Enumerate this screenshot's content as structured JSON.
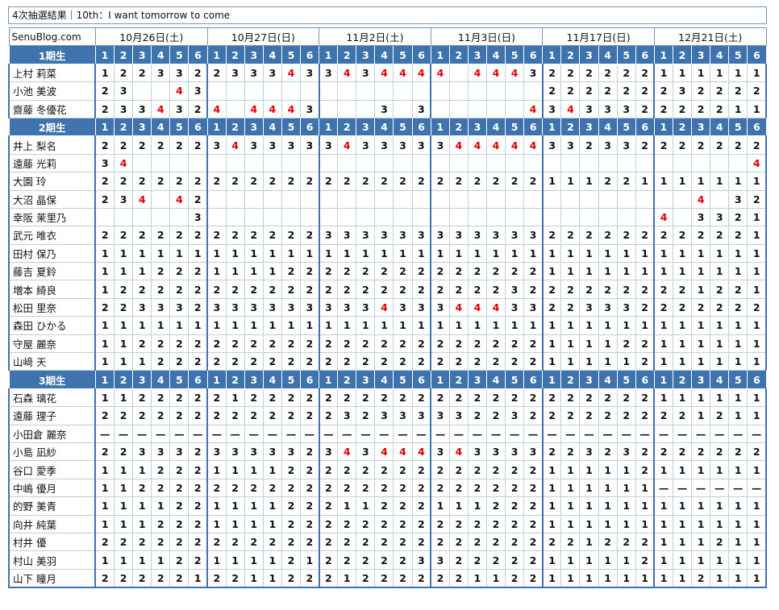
{
  "title": "4次抽選結果｜10th：I want tomorrow to come",
  "blog": "SenuBlog.com",
  "dates": [
    "10月26日(土)",
    "10月27日(日)",
    "11月2日(土)",
    "11月3日(日)",
    "11月17日(日)",
    "12月21日(土)"
  ],
  "slots": [
    "1",
    "2",
    "3",
    "4",
    "5",
    "6"
  ],
  "generations": [
    {
      "label": "1期生",
      "members": [
        {
          "name": "上村 莉菜",
          "values": [
            "1",
            "2",
            "2",
            "3",
            "3",
            "2",
            "2",
            "3",
            "3",
            "3",
            "4",
            "3",
            "3",
            "4",
            "3",
            "4",
            "4",
            "4",
            "4",
            "",
            "4",
            "4",
            "4",
            "3",
            "2",
            "2",
            "2",
            "2",
            "2",
            "2",
            "1",
            "1",
            "1",
            "1",
            "1",
            "1"
          ]
        },
        {
          "name": "小池 美波",
          "values": [
            "2",
            "3",
            "",
            "",
            "4",
            "3",
            "",
            "",
            "",
            "",
            "",
            "",
            "",
            "",
            "",
            "",
            "",
            "",
            "",
            "",
            "",
            "",
            "",
            "",
            "2",
            "2",
            "2",
            "2",
            "2",
            "2",
            "2",
            "3",
            "2",
            "2",
            "2",
            "2"
          ]
        },
        {
          "name": "齋藤 冬優花",
          "values": [
            "2",
            "3",
            "3",
            "4",
            "3",
            "2",
            "4",
            "",
            "4",
            "4",
            "4",
            "3",
            "",
            "",
            "",
            "3",
            "",
            "3",
            "",
            "",
            "",
            "",
            "",
            "4",
            "3",
            "4",
            "3",
            "3",
            "3",
            "2",
            "2",
            "2",
            "2",
            "2",
            "1",
            "1"
          ]
        }
      ]
    },
    {
      "label": "2期生",
      "members": [
        {
          "name": "井上 梨名",
          "values": [
            "2",
            "2",
            "2",
            "2",
            "2",
            "2",
            "3",
            "4",
            "3",
            "3",
            "3",
            "3",
            "3",
            "4",
            "3",
            "3",
            "3",
            "3",
            "3",
            "4",
            "4",
            "4",
            "4",
            "4",
            "3",
            "3",
            "2",
            "3",
            "3",
            "2",
            "2",
            "2",
            "2",
            "2",
            "2",
            "2"
          ]
        },
        {
          "name": "遠藤 光莉",
          "values": [
            "3",
            "4",
            "",
            "",
            "",
            "",
            "",
            "",
            "",
            "",
            "",
            "",
            "",
            "",
            "",
            "",
            "",
            "",
            "",
            "",
            "",
            "",
            "",
            "",
            "",
            "",
            "",
            "",
            "",
            "",
            "",
            "",
            "",
            "",
            "",
            "4"
          ]
        },
        {
          "name": "大園 玲",
          "values": [
            "2",
            "2",
            "2",
            "2",
            "2",
            "2",
            "2",
            "2",
            "2",
            "2",
            "2",
            "2",
            "2",
            "2",
            "2",
            "2",
            "2",
            "2",
            "2",
            "2",
            "2",
            "2",
            "2",
            "2",
            "1",
            "1",
            "1",
            "2",
            "2",
            "1",
            "1",
            "1",
            "1",
            "1",
            "1",
            "1"
          ]
        },
        {
          "name": "大沼 晶保",
          "values": [
            "2",
            "3",
            "4",
            "",
            "4",
            "2",
            "",
            "",
            "",
            "",
            "",
            "",
            "",
            "",
            "",
            "",
            "",
            "",
            "",
            "",
            "",
            "",
            "",
            "",
            "",
            "",
            "",
            "",
            "",
            "",
            "",
            "",
            "4",
            "",
            "3",
            "2"
          ]
        },
        {
          "name": "幸阪 茉里乃",
          "values": [
            "",
            "",
            "",
            "",
            "",
            "3",
            "",
            "",
            "",
            "",
            "",
            "",
            "",
            "",
            "",
            "",
            "",
            "",
            "",
            "",
            "",
            "",
            "",
            "",
            "",
            "",
            "",
            "",
            "",
            "",
            "4",
            "",
            "3",
            "3",
            "2",
            "1"
          ]
        },
        {
          "name": "武元 唯衣",
          "values": [
            "2",
            "2",
            "2",
            "2",
            "2",
            "2",
            "2",
            "2",
            "2",
            "2",
            "2",
            "2",
            "3",
            "3",
            "3",
            "3",
            "3",
            "3",
            "3",
            "3",
            "3",
            "3",
            "3",
            "3",
            "2",
            "2",
            "2",
            "2",
            "2",
            "2",
            "2",
            "2",
            "2",
            "2",
            "2",
            "1"
          ]
        },
        {
          "name": "田村 保乃",
          "values": [
            "1",
            "1",
            "1",
            "1",
            "1",
            "1",
            "1",
            "1",
            "1",
            "1",
            "1",
            "1",
            "1",
            "1",
            "1",
            "1",
            "1",
            "1",
            "1",
            "1",
            "1",
            "1",
            "1",
            "1",
            "1",
            "1",
            "1",
            "1",
            "1",
            "1",
            "1",
            "1",
            "1",
            "1",
            "1",
            "1"
          ]
        },
        {
          "name": "藤吉 夏鈴",
          "values": [
            "1",
            "1",
            "1",
            "2",
            "2",
            "2",
            "1",
            "1",
            "1",
            "1",
            "2",
            "2",
            "2",
            "2",
            "2",
            "2",
            "2",
            "2",
            "2",
            "2",
            "2",
            "2",
            "2",
            "2",
            "1",
            "1",
            "1",
            "1",
            "1",
            "1",
            "1",
            "1",
            "1",
            "1",
            "1",
            "1"
          ]
        },
        {
          "name": "増本 綺良",
          "values": [
            "1",
            "2",
            "2",
            "2",
            "2",
            "2",
            "2",
            "2",
            "2",
            "2",
            "2",
            "2",
            "2",
            "2",
            "2",
            "2",
            "2",
            "2",
            "2",
            "2",
            "2",
            "2",
            "3",
            "2",
            "2",
            "2",
            "2",
            "2",
            "2",
            "2",
            "2",
            "2",
            "1",
            "2",
            "2",
            "1"
          ]
        },
        {
          "name": "松田 里奈",
          "values": [
            "2",
            "2",
            "3",
            "3",
            "3",
            "2",
            "3",
            "3",
            "3",
            "3",
            "3",
            "3",
            "3",
            "3",
            "3",
            "4",
            "3",
            "3",
            "3",
            "4",
            "4",
            "4",
            "3",
            "3",
            "2",
            "2",
            "3",
            "3",
            "3",
            "2",
            "2",
            "2",
            "2",
            "2",
            "2",
            "2"
          ]
        },
        {
          "name": "森田 ひかる",
          "values": [
            "1",
            "1",
            "1",
            "1",
            "1",
            "1",
            "1",
            "1",
            "1",
            "1",
            "1",
            "1",
            "1",
            "1",
            "1",
            "1",
            "1",
            "1",
            "1",
            "1",
            "1",
            "1",
            "1",
            "1",
            "1",
            "1",
            "1",
            "1",
            "1",
            "1",
            "1",
            "1",
            "1",
            "1",
            "1",
            "1"
          ]
        },
        {
          "name": "守屋 麗奈",
          "values": [
            "1",
            "1",
            "2",
            "2",
            "2",
            "2",
            "2",
            "2",
            "2",
            "2",
            "2",
            "2",
            "2",
            "2",
            "2",
            "2",
            "2",
            "2",
            "2",
            "2",
            "2",
            "2",
            "2",
            "2",
            "1",
            "1",
            "1",
            "1",
            "2",
            "2",
            "1",
            "1",
            "1",
            "1",
            "1",
            "1"
          ]
        },
        {
          "name": "山﨑 天",
          "values": [
            "1",
            "1",
            "1",
            "2",
            "2",
            "2",
            "2",
            "2",
            "2",
            "2",
            "2",
            "2",
            "2",
            "2",
            "2",
            "2",
            "2",
            "2",
            "2",
            "2",
            "2",
            "2",
            "2",
            "2",
            "1",
            "1",
            "1",
            "1",
            "1",
            "2",
            "1",
            "1",
            "1",
            "1",
            "1",
            "1"
          ]
        }
      ]
    },
    {
      "label": "3期生",
      "members": [
        {
          "name": "石森 璃花",
          "values": [
            "1",
            "1",
            "2",
            "2",
            "2",
            "2",
            "2",
            "1",
            "2",
            "2",
            "2",
            "2",
            "2",
            "2",
            "2",
            "2",
            "2",
            "2",
            "2",
            "2",
            "2",
            "2",
            "2",
            "2",
            "2",
            "2",
            "2",
            "2",
            "2",
            "2",
            "1",
            "1",
            "1",
            "1",
            "1",
            "1"
          ]
        },
        {
          "name": "遠藤 理子",
          "values": [
            "2",
            "2",
            "2",
            "2",
            "2",
            "2",
            "2",
            "2",
            "2",
            "2",
            "2",
            "2",
            "2",
            "3",
            "2",
            "3",
            "3",
            "3",
            "3",
            "3",
            "2",
            "2",
            "3",
            "2",
            "2",
            "2",
            "2",
            "2",
            "2",
            "2",
            "2",
            "2",
            "1",
            "2",
            "1",
            "1"
          ]
        },
        {
          "name": "小田倉 麗奈",
          "values": [
            "—",
            "—",
            "—",
            "—",
            "—",
            "—",
            "—",
            "—",
            "—",
            "—",
            "—",
            "—",
            "—",
            "—",
            "—",
            "—",
            "—",
            "—",
            "—",
            "—",
            "—",
            "—",
            "—",
            "—",
            "—",
            "—",
            "—",
            "—",
            "—",
            "—",
            "—",
            "—",
            "—",
            "—",
            "—",
            "—"
          ]
        },
        {
          "name": "小島 凪紗",
          "values": [
            "2",
            "2",
            "3",
            "3",
            "3",
            "2",
            "3",
            "3",
            "3",
            "3",
            "3",
            "2",
            "3",
            "4",
            "3",
            "4",
            "4",
            "4",
            "3",
            "4",
            "3",
            "3",
            "3",
            "3",
            "2",
            "2",
            "3",
            "2",
            "3",
            "2",
            "2",
            "2",
            "2",
            "2",
            "2",
            "2"
          ]
        },
        {
          "name": "谷口 愛季",
          "values": [
            "1",
            "1",
            "1",
            "2",
            "2",
            "2",
            "1",
            "1",
            "1",
            "1",
            "2",
            "2",
            "2",
            "2",
            "2",
            "2",
            "2",
            "2",
            "2",
            "2",
            "2",
            "2",
            "2",
            "2",
            "1",
            "1",
            "1",
            "1",
            "1",
            "2",
            "1",
            "1",
            "1",
            "1",
            "1",
            "1"
          ]
        },
        {
          "name": "中嶋 優月",
          "values": [
            "1",
            "1",
            "2",
            "2",
            "2",
            "2",
            "2",
            "2",
            "2",
            "2",
            "2",
            "2",
            "2",
            "2",
            "2",
            "2",
            "2",
            "2",
            "2",
            "2",
            "2",
            "2",
            "2",
            "2",
            "1",
            "1",
            "1",
            "1",
            "1",
            "1",
            "—",
            "—",
            "—",
            "—",
            "—",
            "—"
          ]
        },
        {
          "name": "的野 美青",
          "values": [
            "1",
            "1",
            "1",
            "1",
            "2",
            "2",
            "1",
            "1",
            "1",
            "1",
            "2",
            "2",
            "2",
            "1",
            "1",
            "2",
            "2",
            "2",
            "1",
            "1",
            "1",
            "2",
            "2",
            "2",
            "1",
            "1",
            "1",
            "1",
            "1",
            "1",
            "1",
            "1",
            "1",
            "1",
            "1",
            "1"
          ]
        },
        {
          "name": "向井 純葉",
          "values": [
            "1",
            "1",
            "1",
            "2",
            "2",
            "2",
            "1",
            "1",
            "1",
            "1",
            "2",
            "2",
            "2",
            "2",
            "2",
            "2",
            "2",
            "2",
            "2",
            "2",
            "2",
            "2",
            "2",
            "2",
            "1",
            "1",
            "1",
            "1",
            "1",
            "1",
            "1",
            "1",
            "1",
            "1",
            "1",
            "1"
          ]
        },
        {
          "name": "村井 優",
          "values": [
            "2",
            "2",
            "2",
            "2",
            "2",
            "2",
            "2",
            "2",
            "2",
            "2",
            "2",
            "2",
            "2",
            "2",
            "2",
            "2",
            "2",
            "2",
            "2",
            "2",
            "2",
            "2",
            "2",
            "2",
            "2",
            "2",
            "1",
            "2",
            "2",
            "2",
            "1",
            "1",
            "1",
            "2",
            "1",
            "1"
          ]
        },
        {
          "name": "村山 美羽",
          "values": [
            "1",
            "1",
            "1",
            "1",
            "2",
            "2",
            "1",
            "1",
            "1",
            "1",
            "2",
            "1",
            "2",
            "2",
            "2",
            "2",
            "2",
            "3",
            "3",
            "2",
            "2",
            "2",
            "2",
            "2",
            "1",
            "1",
            "1",
            "1",
            "1",
            "2",
            "1",
            "1",
            "1",
            "1",
            "1",
            "1"
          ]
        },
        {
          "name": "山下 瞳月",
          "values": [
            "2",
            "2",
            "2",
            "2",
            "2",
            "1",
            "2",
            "2",
            "1",
            "1",
            "2",
            "2",
            "2",
            "1",
            "2",
            "2",
            "2",
            "2",
            "2",
            "2",
            "1",
            "1",
            "2",
            "2",
            "1",
            "1",
            "1",
            "1",
            "1",
            "1",
            "1",
            "1",
            "2",
            "1",
            "1",
            "1"
          ]
        }
      ]
    }
  ],
  "colors": {
    "header_bg": "#3f73ad",
    "header_text": "#ffffff",
    "highlight": "#e00000",
    "border": "#b9cfe2"
  }
}
